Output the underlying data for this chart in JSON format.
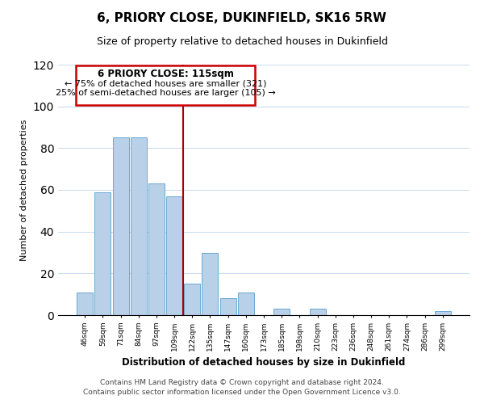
{
  "title": "6, PRIORY CLOSE, DUKINFIELD, SK16 5RW",
  "subtitle": "Size of property relative to detached houses in Dukinfield",
  "xlabel": "Distribution of detached houses by size in Dukinfield",
  "ylabel": "Number of detached properties",
  "bar_labels": [
    "46sqm",
    "59sqm",
    "71sqm",
    "84sqm",
    "97sqm",
    "109sqm",
    "122sqm",
    "135sqm",
    "147sqm",
    "160sqm",
    "173sqm",
    "185sqm",
    "198sqm",
    "210sqm",
    "223sqm",
    "236sqm",
    "248sqm",
    "261sqm",
    "274sqm",
    "286sqm",
    "299sqm"
  ],
  "bar_values": [
    11,
    59,
    85,
    85,
    63,
    57,
    15,
    30,
    8,
    11,
    0,
    3,
    0,
    3,
    0,
    0,
    0,
    0,
    0,
    0,
    2
  ],
  "bar_color": "#b8d0e8",
  "bar_edge_color": "#6aaad4",
  "vline_x": 5.5,
  "vline_color": "#aa0000",
  "annotation_title": "6 PRIORY CLOSE: 115sqm",
  "annotation_line1": "← 75% of detached houses are smaller (321)",
  "annotation_line2": "25% of semi-detached houses are larger (105) →",
  "annotation_box_color": "#cc0000",
  "ylim": [
    0,
    120
  ],
  "yticks": [
    0,
    20,
    40,
    60,
    80,
    100,
    120
  ],
  "footer_line1": "Contains HM Land Registry data © Crown copyright and database right 2024.",
  "footer_line2": "Contains public sector information licensed under the Open Government Licence v3.0.",
  "bg_color": "#ffffff",
  "grid_color": "#ccddee"
}
